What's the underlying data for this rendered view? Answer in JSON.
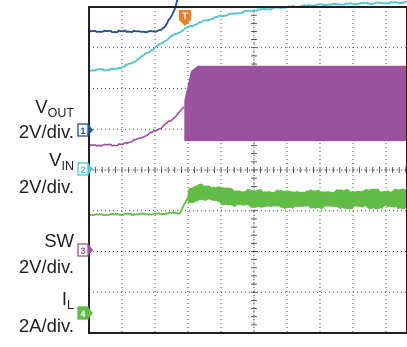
{
  "chart_data": {
    "type": "line",
    "title": "",
    "grid": true,
    "time_divisions": 10,
    "vertical_divisions": 8,
    "trigger_marker": "T",
    "channels": [
      {
        "number": "1",
        "label_main": "V",
        "label_sub": "OUT",
        "scale": "2V/div.",
        "color": "#1f4e9e",
        "points": [
          [
            0,
            3.4
          ],
          [
            2.0,
            3.4
          ],
          [
            2.3,
            3.5
          ],
          [
            2.6,
            3.95
          ],
          [
            2.85,
            4.7
          ],
          [
            3.0,
            5.2
          ],
          [
            3.2,
            5.65
          ],
          [
            3.5,
            5.82
          ],
          [
            4.5,
            5.86
          ],
          [
            10,
            5.86
          ]
        ]
      },
      {
        "number": "2",
        "label_main": "V",
        "label_sub": "IN",
        "scale": "2V/div.",
        "color": "#4fc4d2",
        "points": [
          [
            0,
            2.45
          ],
          [
            0.8,
            2.47
          ],
          [
            1.3,
            2.62
          ],
          [
            2.0,
            3.0
          ],
          [
            2.5,
            3.28
          ],
          [
            3.0,
            3.5
          ],
          [
            3.5,
            3.66
          ],
          [
            4.0,
            3.78
          ],
          [
            5.0,
            3.92
          ],
          [
            6.0,
            4.0
          ],
          [
            7.0,
            4.05
          ],
          [
            8.0,
            4.08
          ],
          [
            9.0,
            4.1
          ],
          [
            10,
            4.12
          ]
        ]
      },
      {
        "number": "3",
        "label_main": "SW",
        "label_sub": "",
        "scale": "2V/div.",
        "color": "#9a529e",
        "points": [
          [
            0,
            0.6
          ],
          [
            1.0,
            0.62
          ],
          [
            1.6,
            0.8
          ],
          [
            2.2,
            1.05
          ],
          [
            2.6,
            1.3
          ],
          [
            2.9,
            1.55
          ]
        ],
        "switching_start": 2.9,
        "switching_low": 0.72,
        "switching_high": [
          [
            2.9,
            1.7
          ],
          [
            3.1,
            2.42
          ],
          [
            3.3,
            2.55
          ],
          [
            10,
            2.55
          ]
        ]
      },
      {
        "number": "4",
        "label_main": "I",
        "label_sub": "L",
        "scale": "2A/div.",
        "color": "#62bd46",
        "points": [
          [
            0,
            -1.1
          ],
          [
            2.0,
            -1.08
          ],
          [
            2.75,
            -1.05
          ],
          [
            2.9,
            -0.85
          ],
          [
            3.05,
            -0.6
          ],
          [
            3.3,
            -0.55
          ],
          [
            4.0,
            -0.66
          ],
          [
            5.5,
            -0.74
          ],
          [
            10,
            -0.78
          ]
        ],
        "ripple_band": [
          [
            3.0,
            -0.5,
            -0.82
          ],
          [
            3.4,
            -0.35,
            -0.7
          ],
          [
            4.0,
            -0.45,
            -0.82
          ],
          [
            5.0,
            -0.52,
            -0.9
          ],
          [
            6.0,
            -0.52,
            -0.92
          ],
          [
            8.0,
            -0.5,
            -0.92
          ],
          [
            10,
            -0.5,
            -0.92
          ]
        ]
      }
    ]
  }
}
